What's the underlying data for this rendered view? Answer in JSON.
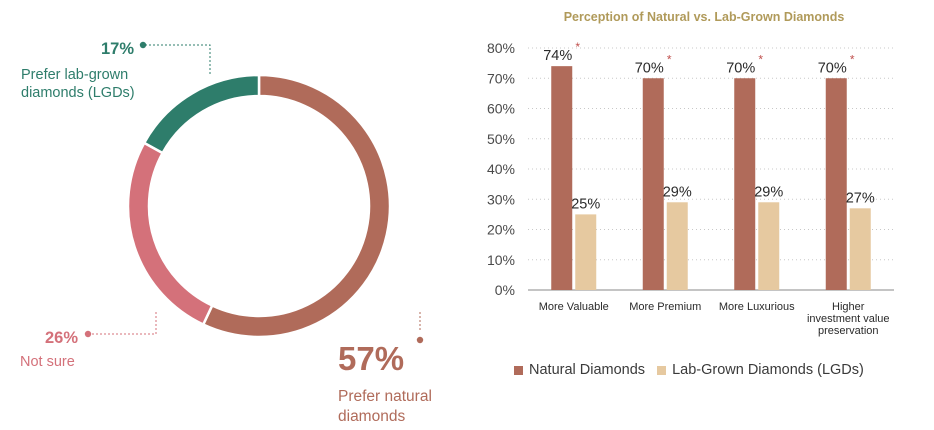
{
  "colors": {
    "natural": "#b06b5a",
    "lab": "#e6c9a0",
    "unsure": "#d4717a",
    "lgd": "#2e7d6b",
    "title": "#b09a5a",
    "axis": "#4a4a4a"
  },
  "chart_data": [
    {
      "type": "pie",
      "title": "",
      "slices": [
        {
          "key": "natural",
          "value": 57,
          "pct_label": "57%",
          "text": [
            "Prefer natural",
            "diamonds"
          ]
        },
        {
          "key": "unsure",
          "value": 26,
          "pct_label": "26%",
          "text": [
            "Not sure"
          ]
        },
        {
          "key": "lgd",
          "value": 17,
          "pct_label": "17%",
          "text": [
            "Prefer lab-grown",
            "diamonds (LGDs)"
          ]
        }
      ]
    },
    {
      "type": "bar",
      "title": "Perception of Natural vs. Lab-Grown Diamonds",
      "categories": [
        [
          "More Valuable"
        ],
        [
          "More Premium"
        ],
        [
          "More Luxurious"
        ],
        [
          "Higher",
          "investment value",
          "preservation"
        ]
      ],
      "series": [
        {
          "name": "Natural Diamonds",
          "values": [
            74,
            70,
            70,
            70
          ],
          "labels": [
            "74%",
            "70%",
            "70%",
            "70%"
          ],
          "marker": "*"
        },
        {
          "name": "Lab-Grown Diamonds (LGDs)",
          "values": [
            25,
            29,
            29,
            27
          ],
          "labels": [
            "25%",
            "29%",
            "29%",
            "27%"
          ],
          "marker": ""
        }
      ],
      "ylim": [
        0,
        80
      ],
      "yticks": [
        "0%",
        "10%",
        "20%",
        "30%",
        "40%",
        "50%",
        "60%",
        "70%",
        "80%"
      ],
      "legend": "bottom"
    }
  ]
}
